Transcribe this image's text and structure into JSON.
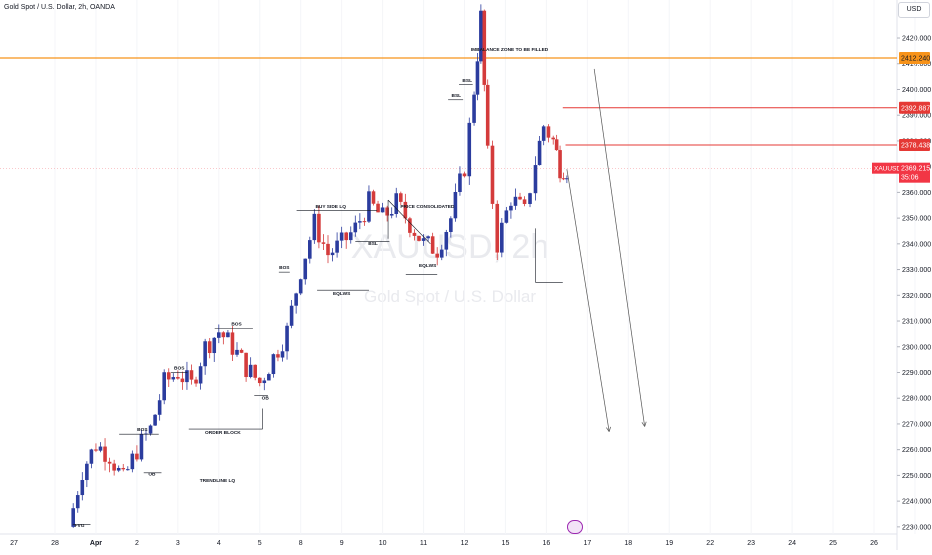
{
  "header": {
    "symbol_title": "Gold Spot / U.S. Dollar, 2h, OANDA"
  },
  "currency_label": "USD",
  "watermark": {
    "line1": "XAUUSD, 2h",
    "line2": "Gold Spot / U.S. Dollar"
  },
  "colors": {
    "up": "#2b3c9e",
    "down": "#d43b3b",
    "orange": "#f7931a",
    "red_level": "#e53935",
    "price_bg": "#f23645"
  },
  "price_label": {
    "symbol": "XAUUSD",
    "price": "2369.215",
    "countdown": "35:06"
  },
  "level_labels": {
    "orange": "2412.240",
    "red1": "2392.887",
    "red2": "2378.438"
  },
  "annotations": {
    "imbalance": "IMBALANCE ZONE TO BE FILLED",
    "price_consolidated": "PRICE CONSOLIDATED",
    "buy_side_lq": "BUY SIDE LQ",
    "trendline_lq": "TRENDLINE LQ",
    "order_block": "ORDER BLOCK",
    "fvg": "FVG",
    "eqlws": "EQLWS",
    "bsl": "BSL",
    "bos": "BOS",
    "ob": "OB"
  },
  "fx_icon": "indicator-icon",
  "chart_data": {
    "type": "candlestick",
    "title": "Gold Spot / U.S. Dollar, 2h, OANDA",
    "currency": "USD",
    "ylim": [
      2228,
      2434
    ],
    "y_ticks": [
      2230,
      2240,
      2250,
      2260,
      2270,
      2280,
      2290,
      2300,
      2310,
      2320,
      2330,
      2340,
      2350,
      2360,
      2370,
      2380,
      2390,
      2400,
      2410,
      2420
    ],
    "x_ticks": [
      "27",
      "28",
      "Apr",
      "2",
      "3",
      "4",
      "5",
      "8",
      "9",
      "10",
      "11",
      "12",
      "15",
      "16",
      "17",
      "18",
      "19",
      "22",
      "23",
      "24",
      "25",
      "26"
    ],
    "x_tick_positions": [
      -3,
      0,
      3,
      6,
      9,
      12,
      15,
      18,
      21,
      24,
      27,
      30,
      33,
      36,
      39,
      42,
      45,
      48,
      51,
      54,
      57,
      60
    ],
    "session_count": 22,
    "grid": false,
    "horizontal_levels": [
      {
        "name": "imbalance",
        "value": 2412.24,
        "color": "orange"
      },
      {
        "name": "resistance-1",
        "value": 2392.887,
        "color": "red"
      },
      {
        "name": "resistance-2",
        "value": 2378.438,
        "color": "red"
      }
    ],
    "current_price": 2369.215,
    "waypoints": [
      [
        1,
        2230
      ],
      [
        2,
        2252
      ],
      [
        3,
        2262
      ],
      [
        4,
        2258
      ],
      [
        5,
        2248
      ],
      [
        6,
        2260
      ],
      [
        7,
        2268
      ],
      [
        8,
        2286
      ],
      [
        9,
        2290
      ],
      [
        10,
        2285
      ],
      [
        11,
        2300
      ],
      [
        12,
        2306
      ],
      [
        13,
        2300
      ],
      [
        14,
        2292
      ],
      [
        15,
        2286
      ],
      [
        16,
        2296
      ],
      [
        17,
        2306
      ],
      [
        18,
        2330
      ],
      [
        19,
        2348
      ],
      [
        20,
        2336
      ],
      [
        21,
        2340
      ],
      [
        22,
        2346
      ],
      [
        23,
        2356
      ],
      [
        24,
        2350
      ],
      [
        25,
        2356
      ],
      [
        26,
        2348
      ],
      [
        27,
        2340
      ],
      [
        28,
        2338
      ],
      [
        29,
        2350
      ],
      [
        30,
        2370
      ],
      [
        30.7,
        2400
      ],
      [
        31.2,
        2428
      ],
      [
        31.7,
        2374
      ],
      [
        32.4,
        2340
      ],
      [
        33.4,
        2358
      ],
      [
        34.4,
        2352
      ],
      [
        35.2,
        2372
      ],
      [
        35.8,
        2386
      ],
      [
        36.5,
        2380
      ],
      [
        37,
        2370
      ],
      [
        37.5,
        2369.2
      ]
    ],
    "projections": [
      {
        "from": [
          37.5,
          2369
        ],
        "to": [
          40.6,
          2267
        ]
      },
      {
        "from": [
          39.5,
          2408
        ],
        "to": [
          43.2,
          2269
        ]
      }
    ]
  }
}
